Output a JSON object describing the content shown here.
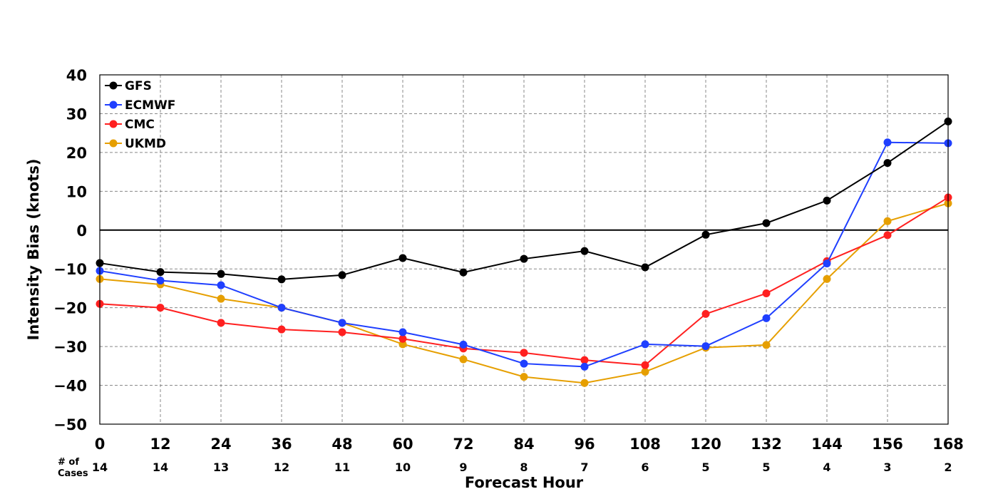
{
  "chart_data": {
    "type": "line",
    "xlabel": "Forecast Hour",
    "ylabel": "Intensity Bias (knots)",
    "x": [
      0,
      12,
      24,
      36,
      48,
      60,
      72,
      84,
      96,
      108,
      120,
      132,
      144,
      156,
      168
    ],
    "x_ticks": [
      "0",
      "12",
      "24",
      "36",
      "48",
      "60",
      "72",
      "84",
      "96",
      "108",
      "120",
      "132",
      "144",
      "156",
      "168"
    ],
    "y_ticks": [
      "40",
      "30",
      "20",
      "10",
      "0",
      "−10",
      "−20",
      "−30",
      "−40",
      "−50"
    ],
    "y_tick_values": [
      40,
      30,
      20,
      10,
      0,
      -10,
      -20,
      -30,
      -40,
      -50
    ],
    "xlim": [
      0,
      168
    ],
    "ylim": [
      -50,
      40
    ],
    "grid": true,
    "zero_line": true,
    "legend_position": "top-left",
    "cases_label_line1": "# of",
    "cases_label_line2": "Cases",
    "cases": [
      "14",
      "14",
      "13",
      "12",
      "11",
      "10",
      "9",
      "8",
      "7",
      "6",
      "5",
      "5",
      "4",
      "3",
      "2"
    ],
    "series": [
      {
        "name": "GFS",
        "color": "#000000",
        "values": [
          -8.5,
          -10.8,
          -11.3,
          -12.7,
          -11.6,
          -7.2,
          -10.9,
          -7.4,
          -5.4,
          -9.6,
          -1.2,
          1.8,
          7.6,
          17.3,
          28.0
        ]
      },
      {
        "name": "ECMWF",
        "color": "#1f3fff",
        "values": [
          -10.5,
          -13.0,
          -14.2,
          -20.0,
          -23.9,
          -26.3,
          -29.5,
          -34.4,
          -35.2,
          -29.4,
          -29.9,
          -22.7,
          -8.6,
          22.6,
          22.4
        ]
      },
      {
        "name": "CMC",
        "color": "#ff2020",
        "values": [
          -19.0,
          -20.0,
          -23.9,
          -25.6,
          -26.3,
          -28.0,
          -30.5,
          -31.6,
          -33.5,
          -34.8,
          -21.6,
          -16.3,
          -8.0,
          -1.3,
          8.4
        ]
      },
      {
        "name": "UKMD",
        "color": "#e69f00",
        "values": [
          -12.6,
          -14.0,
          -17.7,
          -20.0,
          -23.9,
          -29.4,
          -33.3,
          -37.8,
          -39.4,
          -36.5,
          -30.3,
          -29.6,
          -12.6,
          2.3,
          6.9
        ]
      }
    ]
  }
}
